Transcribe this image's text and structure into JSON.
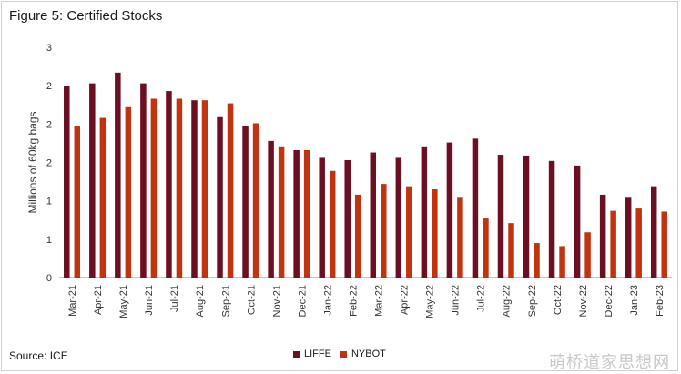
{
  "header": {
    "title": "Figure 5: Certified Stocks"
  },
  "footer": {
    "source": "Source: ICE",
    "watermark": "萌桥道家思想网"
  },
  "colors": {
    "LIFFE": "#6b0f23",
    "NYBOT": "#c2340f",
    "axis": "#8c8c8c"
  },
  "chart_data": {
    "type": "bar",
    "title": "Figure 5: Certified Stocks",
    "ylabel": "Millions of 60kg bags",
    "xlabel": "",
    "y_tick_labels": [
      "0",
      "1",
      "1",
      "2",
      "2",
      "2",
      "3"
    ],
    "ylim": [
      0,
      3
    ],
    "grid": false,
    "legend": "bottom-center",
    "categories": [
      "Mar-21",
      "Apr-21",
      "May-21",
      "Jun-21",
      "Jul-21",
      "Aug-21",
      "Sep-21",
      "Oct-21",
      "Nov-21",
      "Dec-21",
      "Jan-22",
      "Feb-22",
      "Mar-22",
      "Apr-22",
      "May-22",
      "Jun-22",
      "Jul-22",
      "Aug-22",
      "Sep-22",
      "Oct-22",
      "Nov-22",
      "Dec-22",
      "Jan-23",
      "Feb-23"
    ],
    "series": [
      {
        "name": "LIFFE",
        "values": [
          2.5,
          2.53,
          2.67,
          2.53,
          2.43,
          2.31,
          2.09,
          1.97,
          1.78,
          1.66,
          1.56,
          1.53,
          1.63,
          1.56,
          1.71,
          1.76,
          1.81,
          1.6,
          1.59,
          1.52,
          1.46,
          1.08,
          1.04,
          1.19
        ]
      },
      {
        "name": "NYBOT",
        "values": [
          1.97,
          2.08,
          2.22,
          2.33,
          2.33,
          2.31,
          2.27,
          2.01,
          1.71,
          1.66,
          1.39,
          1.08,
          1.22,
          1.19,
          1.15,
          1.04,
          0.77,
          0.71,
          0.45,
          0.41,
          0.59,
          0.87,
          0.9,
          0.86
        ]
      }
    ]
  }
}
